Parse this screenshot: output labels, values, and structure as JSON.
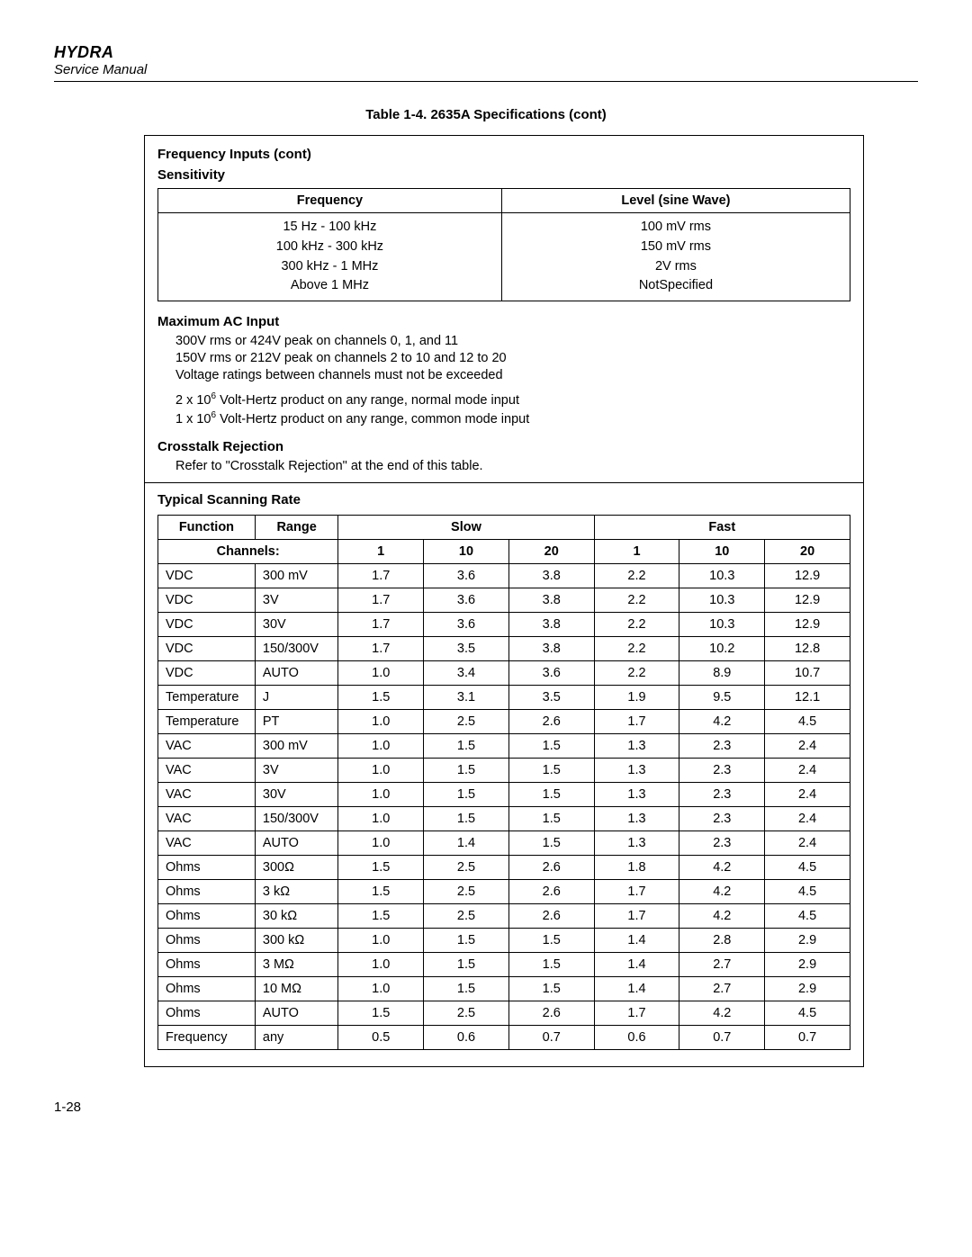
{
  "header": {
    "brand": "HYDRA",
    "subtitle": "Service Manual"
  },
  "tableTitle": "Table 1-4. 2635A Specifications (cont)",
  "freqInputs": {
    "heading": "Frequency Inputs (cont)",
    "sensitivity": "Sensitivity",
    "columns": [
      "Frequency",
      "Level (sine Wave)"
    ],
    "rows": [
      [
        "15 Hz - 100 kHz",
        "100 mV rms"
      ],
      [
        "100 kHz - 300 kHz",
        "150 mV rms"
      ],
      [
        "300 kHz - 1 MHz",
        "2V rms"
      ],
      [
        "Above 1 MHz",
        "NotSpecified"
      ]
    ]
  },
  "maxAc": {
    "heading": "Maximum AC Input",
    "lines1": [
      "300V rms or 424V peak on channels 0, 1, and 11",
      "150V rms or 212V peak on channels 2 to 10 and 12 to 20",
      "Voltage ratings between channels must not be exceeded"
    ],
    "line2a_pre": "2 x 10",
    "line2a_sup": "6",
    "line2a_post": " Volt-Hertz product on any range, normal mode input",
    "line2b_pre": "1 x 10",
    "line2b_sup": "6",
    "line2b_post": " Volt-Hertz product on any range, common mode input"
  },
  "crosstalk": {
    "heading": "Crosstalk Rejection",
    "text": "Refer to \"Crosstalk Rejection\" at the end of this table."
  },
  "scan": {
    "heading": "Typical Scanning Rate",
    "head": {
      "function": "Function",
      "range": "Range",
      "slow": "Slow",
      "fast": "Fast",
      "channels": "Channels:",
      "ch": [
        "1",
        "10",
        "20",
        "1",
        "10",
        "20"
      ]
    },
    "rows": [
      [
        "VDC",
        "300 mV",
        "1.7",
        "3.6",
        "3.8",
        "2.2",
        "10.3",
        "12.9"
      ],
      [
        "VDC",
        "3V",
        "1.7",
        "3.6",
        "3.8",
        "2.2",
        "10.3",
        "12.9"
      ],
      [
        "VDC",
        "30V",
        "1.7",
        "3.6",
        "3.8",
        "2.2",
        "10.3",
        "12.9"
      ],
      [
        "VDC",
        "150/300V",
        "1.7",
        "3.5",
        "3.8",
        "2.2",
        "10.2",
        "12.8"
      ],
      [
        "VDC",
        "AUTO",
        "1.0",
        "3.4",
        "3.6",
        "2.2",
        "8.9",
        "10.7"
      ],
      [
        "Temperature",
        "J",
        "1.5",
        "3.1",
        "3.5",
        "1.9",
        "9.5",
        "12.1"
      ],
      [
        "Temperature",
        "PT",
        "1.0",
        "2.5",
        "2.6",
        "1.7",
        "4.2",
        "4.5"
      ],
      [
        "VAC",
        "300 mV",
        "1.0",
        "1.5",
        "1.5",
        "1.3",
        "2.3",
        "2.4"
      ],
      [
        "VAC",
        "3V",
        "1.0",
        "1.5",
        "1.5",
        "1.3",
        "2.3",
        "2.4"
      ],
      [
        "VAC",
        "30V",
        "1.0",
        "1.5",
        "1.5",
        "1.3",
        "2.3",
        "2.4"
      ],
      [
        "VAC",
        "150/300V",
        "1.0",
        "1.5",
        "1.5",
        "1.3",
        "2.3",
        "2.4"
      ],
      [
        "VAC",
        "AUTO",
        "1.0",
        "1.4",
        "1.5",
        "1.3",
        "2.3",
        "2.4"
      ],
      [
        "Ohms",
        "300Ω",
        "1.5",
        "2.5",
        "2.6",
        "1.8",
        "4.2",
        "4.5"
      ],
      [
        "Ohms",
        "3 kΩ",
        "1.5",
        "2.5",
        "2.6",
        "1.7",
        "4.2",
        "4.5"
      ],
      [
        "Ohms",
        "30 kΩ",
        "1.5",
        "2.5",
        "2.6",
        "1.7",
        "4.2",
        "4.5"
      ],
      [
        "Ohms",
        "300 kΩ",
        "1.0",
        "1.5",
        "1.5",
        "1.4",
        "2.8",
        "2.9"
      ],
      [
        "Ohms",
        "3 MΩ",
        "1.0",
        "1.5",
        "1.5",
        "1.4",
        "2.7",
        "2.9"
      ],
      [
        "Ohms",
        "10 MΩ",
        "1.0",
        "1.5",
        "1.5",
        "1.4",
        "2.7",
        "2.9"
      ],
      [
        "Ohms",
        "AUTO",
        "1.5",
        "2.5",
        "2.6",
        "1.7",
        "4.2",
        "4.5"
      ],
      [
        "Frequency",
        "any",
        "0.5",
        "0.6",
        "0.7",
        "0.6",
        "0.7",
        "0.7"
      ]
    ]
  },
  "pageNum": "1-28"
}
